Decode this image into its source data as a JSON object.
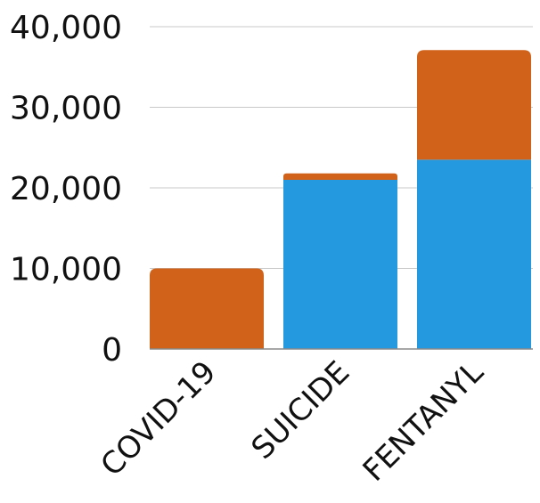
{
  "chart_data": {
    "type": "bar",
    "stacked": true,
    "categories": [
      "COVID-19",
      "SUICIDE",
      "FENTANYL"
    ],
    "series": [
      {
        "color": "#2499e0",
        "values": [
          0,
          21000,
          23500
        ]
      },
      {
        "color": "#d0621a",
        "values": [
          10000,
          800,
          13600
        ]
      }
    ],
    "yticks": [
      "0",
      "10,000",
      "20,000",
      "30,000",
      "40,000"
    ],
    "ytick_values": [
      0,
      10000,
      20000,
      30000,
      40000
    ],
    "ylim": [
      0,
      40000
    ],
    "grid": true,
    "legend": "none"
  }
}
